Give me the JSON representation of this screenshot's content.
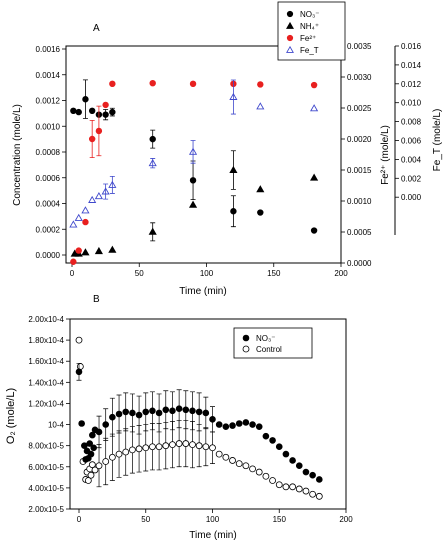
{
  "chart_data": [
    {
      "panel": "A",
      "type": "scatter",
      "xlabel": "Time (min)",
      "ylabel": "Concentration (mole/L)",
      "y2label": "Fe²⁺ (mole/L)",
      "y3label": "Fe_T (mole/L)",
      "xlim": [
        0,
        200
      ],
      "xticks": [
        "0",
        "50",
        "100",
        "150",
        "200"
      ],
      "ylim": [
        0,
        0.0016
      ],
      "yticks": [
        "0.0000",
        "0.0002",
        "0.0004",
        "0.0006",
        "0.0008",
        "0.0010",
        "0.0012",
        "0.0014",
        "0.0016"
      ],
      "y2lim": [
        0,
        0.0035
      ],
      "y2ticks": [
        "0.0000",
        "0.0005",
        "0.0010",
        "0.0015",
        "0.0020",
        "0.0025",
        "0.0030",
        "0.0035"
      ],
      "y3lim": [
        -0.004,
        0.016
      ],
      "y3ticks": [
        "0.000",
        "0.002",
        "0.004",
        "0.006",
        "0.008",
        "0.010",
        "0.012",
        "0.014",
        "0.016"
      ],
      "legend_position": "top-right",
      "series": [
        {
          "name": "NO₃⁻",
          "color": "#000000",
          "marker": "circle-filled",
          "axis": "left",
          "points": [
            {
              "x": 1,
              "y": 0.00112
            },
            {
              "x": 5,
              "y": 0.00111
            },
            {
              "x": 10,
              "y": 0.00121,
              "err": 0.00015
            },
            {
              "x": 15,
              "y": 0.00112
            },
            {
              "x": 20,
              "y": 0.00109
            },
            {
              "x": 25,
              "y": 0.00109,
              "err": 4e-05
            },
            {
              "x": 30,
              "y": 0.00111,
              "err": 3e-05
            },
            {
              "x": 60,
              "y": 0.0009,
              "err": 7e-05
            },
            {
              "x": 90,
              "y": 0.00058,
              "err": 0.00015
            },
            {
              "x": 120,
              "y": 0.00034,
              "err": 0.00012
            },
            {
              "x": 140,
              "y": 0.00033
            },
            {
              "x": 180,
              "y": 0.00019
            }
          ]
        },
        {
          "name": "NH₄⁺",
          "color": "#000000",
          "marker": "triangle-filled",
          "axis": "left",
          "points": [
            {
              "x": 2,
              "y": 1e-05
            },
            {
              "x": 5,
              "y": 1e-05
            },
            {
              "x": 10,
              "y": 2e-05
            },
            {
              "x": 20,
              "y": 3e-05
            },
            {
              "x": 30,
              "y": 4e-05
            },
            {
              "x": 60,
              "y": 0.00018,
              "err": 7e-05
            },
            {
              "x": 90,
              "y": 0.00039
            },
            {
              "x": 120,
              "y": 0.00066,
              "err": 0.00015
            },
            {
              "x": 140,
              "y": 0.00051
            },
            {
              "x": 180,
              "y": 0.0006
            }
          ]
        },
        {
          "name": "Fe²⁺",
          "color": "#e8201f",
          "marker": "circle-filled",
          "axis": "right",
          "points": [
            {
              "x": 1,
              "y": 2e-05
            },
            {
              "x": 5,
              "y": 0.0002
            },
            {
              "x": 10,
              "y": 0.00066
            },
            {
              "x": 15,
              "y": 0.002,
              "err": 0.0003
            },
            {
              "x": 20,
              "y": 0.00213,
              "err": 0.0004
            },
            {
              "x": 25,
              "y": 0.00255
            },
            {
              "x": 30,
              "y": 0.00289
            },
            {
              "x": 60,
              "y": 0.0029
            },
            {
              "x": 90,
              "y": 0.00289
            },
            {
              "x": 120,
              "y": 0.00289
            },
            {
              "x": 140,
              "y": 0.00288
            },
            {
              "x": 180,
              "y": 0.00287
            }
          ]
        },
        {
          "name": "Fe_T",
          "color": "#3f48cc",
          "marker": "triangle-open",
          "axis": "third",
          "points": [
            {
              "x": 1,
              "y": -0.0029
            },
            {
              "x": 5,
              "y": -0.0022
            },
            {
              "x": 10,
              "y": -0.0014
            },
            {
              "x": 15,
              "y": -0.0003
            },
            {
              "x": 20,
              "y": 0.0001
            },
            {
              "x": 25,
              "y": 0.0006,
              "err": 0.0008
            },
            {
              "x": 30,
              "y": 0.0013,
              "err": 0.0009
            },
            {
              "x": 60,
              "y": 0.0036,
              "err": 0.0005
            },
            {
              "x": 90,
              "y": 0.0048,
              "err": 0.0012
            },
            {
              "x": 120,
              "y": 0.0106,
              "err": 0.0018
            },
            {
              "x": 140,
              "y": 0.0096
            },
            {
              "x": 180,
              "y": 0.0094
            }
          ]
        }
      ]
    },
    {
      "panel": "B",
      "type": "scatter",
      "xlabel": "Time (min)",
      "ylabel": "O₂ (mole/L)",
      "xlim": [
        -5,
        200
      ],
      "xticks": [
        "0",
        "50",
        "100",
        "150",
        "200"
      ],
      "ylim": [
        2e-05,
        0.0002
      ],
      "yticks": [
        "2.00x10-5",
        "4.00x10-5",
        "6.00x10-5",
        "8.00x10-5",
        "10-4",
        "1.20x10-4",
        "1.40x10-4",
        "1.60x10-4",
        "1.80x10-4",
        "2.00x10-4"
      ],
      "legend_position": "top-right",
      "series": [
        {
          "name": "NO₃⁻",
          "color": "#000000",
          "marker": "circle-filled",
          "points": [
            {
              "x": 0,
              "y": 0.00015,
              "err": 8e-06
            },
            {
              "x": 2,
              "y": 0.000101
            },
            {
              "x": 4,
              "y": 8e-05
            },
            {
              "x": 5,
              "y": 6.7e-05
            },
            {
              "x": 6,
              "y": 7.5e-05
            },
            {
              "x": 7,
              "y": 6.8e-05
            },
            {
              "x": 8,
              "y": 8.2e-05
            },
            {
              "x": 9,
              "y": 7.2e-05
            },
            {
              "x": 10,
              "y": 9e-05
            },
            {
              "x": 11,
              "y": 7.8e-05
            },
            {
              "x": 12,
              "y": 9.5e-05
            },
            {
              "x": 15,
              "y": 9.3e-05,
              "err": 1.5e-05
            },
            {
              "x": 20,
              "y": 0.0001,
              "err": 1.5e-05
            },
            {
              "x": 25,
              "y": 0.000107,
              "err": 1.8e-05
            },
            {
              "x": 30,
              "y": 0.00011,
              "err": 1.8e-05
            },
            {
              "x": 35,
              "y": 0.000112,
              "err": 1.8e-05
            },
            {
              "x": 40,
              "y": 0.000111,
              "err": 1.8e-05
            },
            {
              "x": 45,
              "y": 0.000109,
              "err": 1.8e-05
            },
            {
              "x": 50,
              "y": 0.000112,
              "err": 1.8e-05
            },
            {
              "x": 55,
              "y": 0.000113,
              "err": 1.8e-05
            },
            {
              "x": 60,
              "y": 0.000111,
              "err": 1.8e-05
            },
            {
              "x": 65,
              "y": 0.000114,
              "err": 1.8e-05
            },
            {
              "x": 70,
              "y": 0.000113,
              "err": 1.8e-05
            },
            {
              "x": 75,
              "y": 0.000115,
              "err": 1.8e-05
            },
            {
              "x": 80,
              "y": 0.000114,
              "err": 1.8e-05
            },
            {
              "x": 85,
              "y": 0.000113,
              "err": 1.8e-05
            },
            {
              "x": 90,
              "y": 0.000112,
              "err": 1.8e-05
            },
            {
              "x": 95,
              "y": 0.000111,
              "err": 1.5e-05
            },
            {
              "x": 100,
              "y": 0.000105,
              "err": 1.2e-05
            },
            {
              "x": 105,
              "y": 0.0001
            },
            {
              "x": 110,
              "y": 9.8e-05
            },
            {
              "x": 115,
              "y": 9.9e-05
            },
            {
              "x": 120,
              "y": 0.000101
            },
            {
              "x": 125,
              "y": 0.000102
            },
            {
              "x": 130,
              "y": 0.0001
            },
            {
              "x": 135,
              "y": 9.8e-05
            },
            {
              "x": 140,
              "y": 8.9e-05
            },
            {
              "x": 145,
              "y": 8.5e-05
            },
            {
              "x": 150,
              "y": 7.9e-05
            },
            {
              "x": 155,
              "y": 7.2e-05
            },
            {
              "x": 160,
              "y": 6.6e-05
            },
            {
              "x": 165,
              "y": 6.1e-05
            },
            {
              "x": 170,
              "y": 5.5e-05
            },
            {
              "x": 175,
              "y": 5.2e-05
            },
            {
              "x": 180,
              "y": 4.8e-05
            }
          ]
        },
        {
          "name": "Control",
          "color": "#000000",
          "marker": "circle-open",
          "points": [
            {
              "x": 0,
              "y": 0.00018
            },
            {
              "x": 1,
              "y": 0.000155
            },
            {
              "x": 3,
              "y": 6.5e-05
            },
            {
              "x": 5,
              "y": 4.8e-05
            },
            {
              "x": 6,
              "y": 5.5e-05
            },
            {
              "x": 7,
              "y": 4.7e-05
            },
            {
              "x": 8,
              "y": 5.8e-05
            },
            {
              "x": 9,
              "y": 5.2e-05
            },
            {
              "x": 10,
              "y": 6.2e-05
            },
            {
              "x": 12,
              "y": 5.7e-05
            },
            {
              "x": 15,
              "y": 6.1e-05,
              "err": 2e-05
            },
            {
              "x": 20,
              "y": 6.5e-05,
              "err": 2.2e-05
            },
            {
              "x": 25,
              "y": 6.9e-05,
              "err": 2.2e-05
            },
            {
              "x": 30,
              "y": 7.2e-05,
              "err": 2.2e-05
            },
            {
              "x": 35,
              "y": 7.4e-05,
              "err": 2.2e-05
            },
            {
              "x": 40,
              "y": 7.6e-05,
              "err": 2.2e-05
            },
            {
              "x": 45,
              "y": 7.7e-05,
              "err": 2.2e-05
            },
            {
              "x": 50,
              "y": 7.8e-05,
              "err": 2.2e-05
            },
            {
              "x": 55,
              "y": 7.9e-05,
              "err": 2.2e-05
            },
            {
              "x": 60,
              "y": 7.9e-05,
              "err": 2.2e-05
            },
            {
              "x": 65,
              "y": 8e-05,
              "err": 2.2e-05
            },
            {
              "x": 70,
              "y": 8.1e-05,
              "err": 2.2e-05
            },
            {
              "x": 75,
              "y": 8.2e-05,
              "err": 2.2e-05
            },
            {
              "x": 80,
              "y": 8.2e-05,
              "err": 2.2e-05
            },
            {
              "x": 85,
              "y": 8.1e-05,
              "err": 2.2e-05
            },
            {
              "x": 90,
              "y": 8e-05,
              "err": 2e-05
            },
            {
              "x": 95,
              "y": 7.9e-05,
              "err": 1.8e-05
            },
            {
              "x": 100,
              "y": 7.8e-05,
              "err": 1.5e-05
            },
            {
              "x": 105,
              "y": 7.2e-05
            },
            {
              "x": 110,
              "y": 6.9e-05
            },
            {
              "x": 115,
              "y": 6.6e-05
            },
            {
              "x": 120,
              "y": 6.3e-05
            },
            {
              "x": 125,
              "y": 6.1e-05
            },
            {
              "x": 130,
              "y": 5.8e-05
            },
            {
              "x": 135,
              "y": 5.5e-05
            },
            {
              "x": 140,
              "y": 5.1e-05
            },
            {
              "x": 145,
              "y": 4.7e-05
            },
            {
              "x": 150,
              "y": 4.3e-05
            },
            {
              "x": 155,
              "y": 4.1e-05
            },
            {
              "x": 160,
              "y": 4.1e-05
            },
            {
              "x": 165,
              "y": 3.9e-05
            },
            {
              "x": 170,
              "y": 3.7e-05
            },
            {
              "x": 175,
              "y": 3.4e-05
            },
            {
              "x": 180,
              "y": 3.2e-05
            }
          ]
        }
      ]
    }
  ]
}
